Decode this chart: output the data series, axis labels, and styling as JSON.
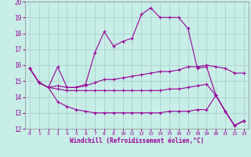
{
  "xlabel": "Windchill (Refroidissement éolien,°C)",
  "background_color": "#c8eee8",
  "grid_color": "#a8ccc8",
  "line_color": "#990099",
  "x_ticks": [
    0,
    1,
    2,
    3,
    4,
    5,
    6,
    7,
    8,
    9,
    10,
    11,
    12,
    13,
    14,
    15,
    16,
    17,
    18,
    19,
    20,
    21,
    22,
    23
  ],
  "ylim": [
    12,
    20
  ],
  "yticks": [
    12,
    13,
    14,
    15,
    16,
    17,
    18,
    19,
    20
  ],
  "line1_x": [
    0,
    1,
    2,
    3,
    4,
    5,
    6,
    7,
    8,
    9,
    10,
    11,
    12,
    13,
    14,
    15,
    16,
    17,
    18,
    19,
    20,
    21,
    22,
    23
  ],
  "line1_y": [
    15.8,
    14.9,
    14.6,
    15.9,
    14.6,
    14.6,
    14.8,
    16.8,
    18.1,
    17.2,
    17.5,
    17.7,
    19.2,
    19.6,
    19.0,
    19.0,
    19.0,
    18.3,
    15.8,
    15.9,
    14.1,
    13.1,
    12.2,
    12.5
  ],
  "line2_x": [
    0,
    1,
    2,
    3,
    4,
    5,
    6,
    7,
    8,
    9,
    10,
    11,
    12,
    13,
    14,
    15,
    16,
    17,
    18,
    19,
    20,
    21,
    22,
    23
  ],
  "line2_y": [
    15.8,
    14.9,
    14.6,
    14.7,
    14.6,
    14.6,
    14.7,
    14.9,
    15.1,
    15.1,
    15.2,
    15.3,
    15.4,
    15.5,
    15.6,
    15.6,
    15.7,
    15.9,
    15.9,
    16.0,
    15.9,
    15.8,
    15.5,
    15.5
  ],
  "line3_x": [
    0,
    1,
    2,
    3,
    4,
    5,
    6,
    7,
    8,
    9,
    10,
    11,
    12,
    13,
    14,
    15,
    16,
    17,
    18,
    19,
    20,
    21,
    22,
    23
  ],
  "line3_y": [
    15.8,
    14.9,
    14.6,
    14.5,
    14.4,
    14.4,
    14.4,
    14.4,
    14.4,
    14.4,
    14.4,
    14.4,
    14.4,
    14.4,
    14.4,
    14.5,
    14.5,
    14.6,
    14.7,
    14.8,
    14.1,
    13.1,
    12.2,
    12.5
  ],
  "line4_x": [
    0,
    1,
    2,
    3,
    4,
    5,
    6,
    7,
    8,
    9,
    10,
    11,
    12,
    13,
    14,
    15,
    16,
    17,
    18,
    19,
    20,
    21,
    22,
    23
  ],
  "line4_y": [
    15.8,
    14.9,
    14.6,
    13.7,
    13.4,
    13.2,
    13.1,
    13.0,
    13.0,
    13.0,
    13.0,
    13.0,
    13.0,
    13.0,
    13.0,
    13.1,
    13.1,
    13.1,
    13.2,
    13.2,
    14.1,
    13.1,
    12.2,
    12.5
  ]
}
